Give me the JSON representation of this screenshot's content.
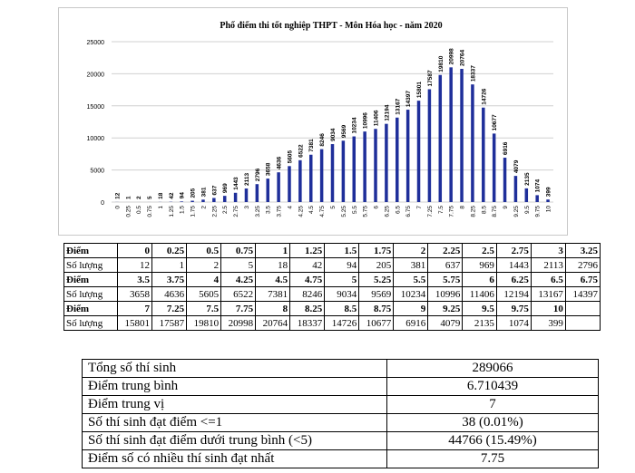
{
  "chart_data": {
    "type": "bar",
    "title": "Phổ điểm thi tốt nghiệp THPT - Môn Hóa học - năm 2020",
    "xlabel": "",
    "ylabel": "",
    "ylim": [
      0,
      25000
    ],
    "yticks": [
      0,
      5000,
      10000,
      15000,
      20000,
      25000
    ],
    "grid": true,
    "bar_color": "#1f2f9a",
    "categories": [
      "0",
      "0.25",
      "0.5",
      "0.75",
      "1",
      "1.25",
      "1.5",
      "1.75",
      "2",
      "2.25",
      "2.5",
      "2.75",
      "3",
      "3.25",
      "3.5",
      "3.75",
      "4",
      "4.25",
      "4.5",
      "4.75",
      "5",
      "5.25",
      "5.5",
      "5.75",
      "6",
      "6.25",
      "6.5",
      "6.75",
      "7",
      "7.25",
      "7.5",
      "7.75",
      "8",
      "8.25",
      "8.5",
      "8.75",
      "9",
      "9.25",
      "9.5",
      "9.75",
      "10"
    ],
    "values": [
      12,
      1,
      2,
      5,
      18,
      42,
      94,
      205,
      381,
      637,
      969,
      1443,
      2113,
      2796,
      3658,
      4636,
      5605,
      6522,
      7381,
      8246,
      9034,
      9569,
      10234,
      10996,
      11406,
      12194,
      13167,
      14397,
      15801,
      17587,
      19810,
      20998,
      20764,
      18337,
      14726,
      10677,
      6916,
      4079,
      2135,
      1074,
      399
    ]
  },
  "table": {
    "row_label_score": "Điểm",
    "row_label_count": "Số lượng",
    "blocks": [
      {
        "scores": [
          "0",
          "0.25",
          "0.5",
          "0.75",
          "1",
          "1.25",
          "1.5",
          "1.75",
          "2",
          "2.25",
          "2.5",
          "2.75",
          "3",
          "3.25"
        ],
        "counts": [
          "12",
          "1",
          "2",
          "5",
          "18",
          "42",
          "94",
          "205",
          "381",
          "637",
          "969",
          "1443",
          "2113",
          "2796"
        ]
      },
      {
        "scores": [
          "3.5",
          "3.75",
          "4",
          "4.25",
          "4.5",
          "4.75",
          "5",
          "5.25",
          "5.5",
          "5.75",
          "6",
          "6.25",
          "6.5",
          "6.75"
        ],
        "counts": [
          "3658",
          "4636",
          "5605",
          "6522",
          "7381",
          "8246",
          "9034",
          "9569",
          "10234",
          "10996",
          "11406",
          "12194",
          "13167",
          "14397"
        ]
      },
      {
        "scores": [
          "7",
          "7.25",
          "7.5",
          "7.75",
          "8",
          "8.25",
          "8.5",
          "8.75",
          "9",
          "9.25",
          "9.5",
          "9.75",
          "10",
          ""
        ],
        "counts": [
          "15801",
          "17587",
          "19810",
          "20998",
          "20764",
          "18337",
          "14726",
          "10677",
          "6916",
          "4079",
          "2135",
          "1074",
          "399",
          ""
        ]
      }
    ]
  },
  "summary": [
    {
      "label": "Tổng số thí sinh",
      "value": "289066"
    },
    {
      "label": "Điểm trung bình",
      "value": "6.710439"
    },
    {
      "label": "Điểm trung vị",
      "value": "7"
    },
    {
      "label": "Số thí sinh đạt điểm <=1",
      "value": "38 (0.01%)"
    },
    {
      "label": "Số thí sinh đạt điểm dưới trung bình (<5)",
      "value": "44766 (15.49%)"
    },
    {
      "label": "Điểm số có nhiều thí sinh đạt nhất",
      "value": "7.75"
    }
  ]
}
